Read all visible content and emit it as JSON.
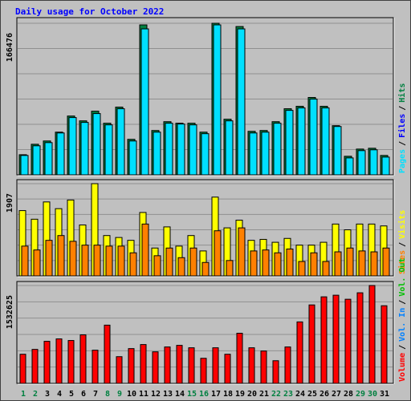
{
  "title": "Daily usage for October 2022",
  "separator": "/",
  "chart_data": [
    {
      "type": "bar",
      "ylim": [
        0,
        166476
      ],
      "yticks": [
        166476
      ],
      "series": [
        {
          "name": "Pages",
          "color": "#00e0ff",
          "values": [
            21300,
            31900,
            35400,
            46000,
            62900,
            57600,
            67300,
            54900,
            72600,
            37200,
            160300,
            46900,
            56700,
            55800,
            54900,
            45200,
            164700,
            59300,
            160300,
            46000,
            46900,
            56700,
            70800,
            73500,
            83200,
            73500,
            53100,
            18600,
            26600,
            27500,
            19500
          ]
        },
        {
          "name": "Files",
          "color": "#0000ff"
        },
        {
          "name": "Hits",
          "color": "#008040",
          "values": [
            22100,
            33600,
            37200,
            46900,
            64600,
            59300,
            69900,
            56700,
            74400,
            39000,
            164700,
            48700,
            58400,
            56700,
            56700,
            46900,
            166476,
            61100,
            162900,
            47800,
            48700,
            58400,
            72600,
            75300,
            85000,
            75300,
            54000,
            20400,
            28300,
            29200,
            21300
          ]
        }
      ]
    },
    {
      "type": "bar",
      "ylim": [
        0,
        1907
      ],
      "yticks": [
        1907
      ],
      "series": [
        {
          "name": "Sites",
          "color": "#ff8000",
          "values": [
            616,
            536,
            735,
            834,
            715,
            636,
            636,
            616,
            616,
            477,
            1072,
            417,
            576,
            377,
            576,
            278,
            933,
            318,
            993,
            516,
            536,
            477,
            556,
            298,
            477,
            298,
            497,
            576,
            516,
            497,
            576
          ]
        },
        {
          "name": "Visits",
          "color": "#ffff00",
          "values": [
            1350,
            1172,
            1529,
            1390,
            1569,
            1053,
            1907,
            834,
            794,
            735,
            1311,
            576,
            1013,
            616,
            834,
            516,
            1629,
            993,
            1152,
            735,
            755,
            695,
            775,
            636,
            636,
            695,
            1072,
            953,
            1072,
            1072,
            1033
          ]
        }
      ]
    },
    {
      "type": "bar",
      "ylim": [
        0,
        1532625
      ],
      "yticks": [
        1532625
      ],
      "categories": [
        "1",
        "2",
        "3",
        "4",
        "5",
        "6",
        "7",
        "8",
        "9",
        "10",
        "11",
        "12",
        "13",
        "14",
        "15",
        "16",
        "17",
        "18",
        "19",
        "20",
        "21",
        "22",
        "23",
        "24",
        "25",
        "26",
        "27",
        "28",
        "29",
        "30",
        "31"
      ],
      "category_colors": [
        "#008040",
        "#008040",
        "#000000",
        "#000000",
        "#000000",
        "#000000",
        "#000000",
        "#008040",
        "#008040",
        "#000000",
        "#000000",
        "#000000",
        "#000000",
        "#000000",
        "#008040",
        "#008040",
        "#000000",
        "#000000",
        "#000000",
        "#000000",
        "#000000",
        "#008040",
        "#008040",
        "#000000",
        "#000000",
        "#000000",
        "#000000",
        "#000000",
        "#008040",
        "#008040",
        "#000000"
      ],
      "series": [
        {
          "name": "Volume",
          "color": "#ff0000",
          "values": [
            456000,
            532000,
            658600,
            696600,
            671300,
            760000,
            519300,
            912000,
            418000,
            544600,
            608000,
            494000,
            570000,
            595300,
            557300,
            392600,
            557300,
            456000,
            785300,
            557300,
            506600,
            354600,
            570000,
            962600,
            1228600,
            1355300,
            1380600,
            1317300,
            1418600,
            1532625,
            1216000
          ]
        },
        {
          "name": "Vol. In",
          "color": "#0080ff"
        },
        {
          "name": "Vol. Out",
          "color": "#00c000"
        }
      ]
    }
  ]
}
